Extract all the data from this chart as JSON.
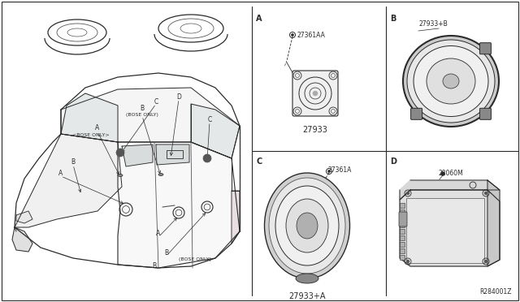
{
  "bg_color": "#ffffff",
  "line_color": "#2a2a2a",
  "mid_line": "#555555",
  "light_line": "#999999",
  "fig_width": 6.4,
  "fig_height": 3.72,
  "dpi": 100,
  "part_labels": {
    "A_screw": "27361AA",
    "A_part": "27933",
    "B_part": "27933+B",
    "C_screw": "27361A",
    "C_part": "27933+A",
    "D_part": "28060M",
    "ref": "R284001Z"
  }
}
